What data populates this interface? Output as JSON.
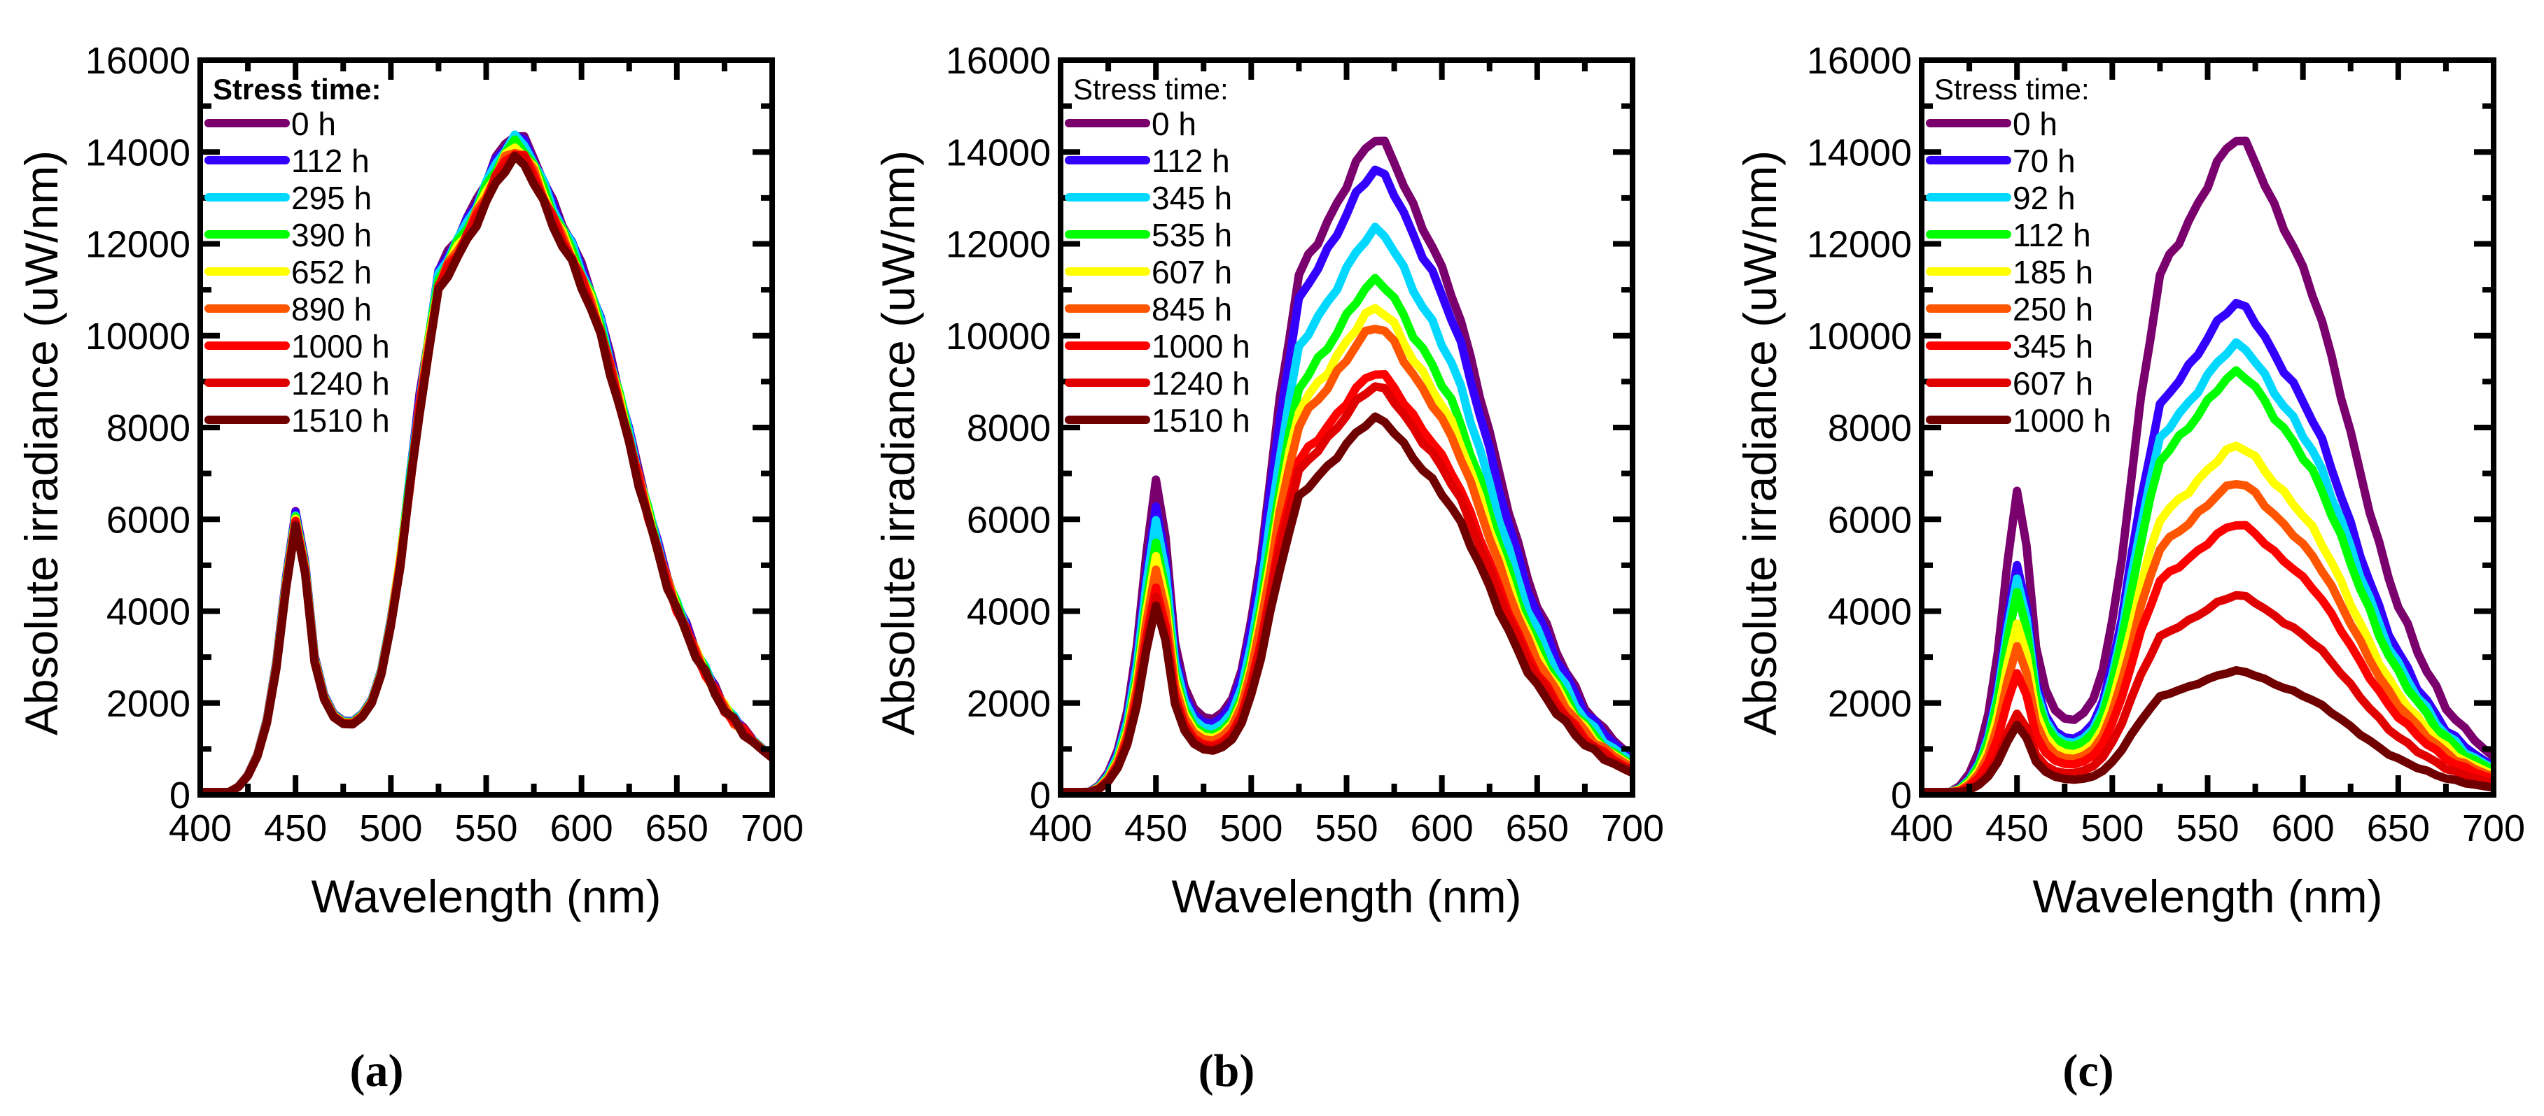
{
  "chart_data": [
    {
      "type": "line",
      "panel_label": "(a)",
      "xlabel": "Wavelength (nm)",
      "ylabel": "Absolute irradiance (uW/nm)",
      "xlim": [
        400,
        700
      ],
      "ylim": [
        0,
        16000
      ],
      "xticks": [
        400,
        450,
        500,
        550,
        600,
        650,
        700
      ],
      "yticks": [
        0,
        2000,
        4000,
        6000,
        8000,
        10000,
        12000,
        14000,
        16000
      ],
      "legend_title": "Stress time:",
      "legend_title_bold": true,
      "legend_position": "top-left",
      "series": [
        {
          "name": "0 h",
          "color": "#7a006e",
          "peak_450": 6300,
          "peak_567": 14400
        },
        {
          "name": "112 h",
          "color": "#3300ff",
          "peak_450": 6280,
          "peak_567": 14350
        },
        {
          "name": "295 h",
          "color": "#00d8ff",
          "peak_450": 6200,
          "peak_567": 14300
        },
        {
          "name": "390 h",
          "color": "#00ff00",
          "peak_450": 6180,
          "peak_567": 14200
        },
        {
          "name": "652 h",
          "color": "#ffff00",
          "peak_450": 6130,
          "peak_567": 14100
        },
        {
          "name": "890 h",
          "color": "#ff5500",
          "peak_450": 6080,
          "peak_567": 14050
        },
        {
          "name": "1000 h",
          "color": "#ff0000",
          "peak_450": 6080,
          "peak_567": 14000
        },
        {
          "name": "1240 h",
          "color": "#e00000",
          "peak_450": 6030,
          "peak_567": 13950
        },
        {
          "name": "1510 h",
          "color": "#700000",
          "peak_450": 5980,
          "peak_567": 13850
        }
      ]
    },
    {
      "type": "line",
      "panel_label": "(b)",
      "xlabel": "Wavelength (nm)",
      "ylabel": "Absolute irradiance (uW/nm)",
      "xlim": [
        400,
        700
      ],
      "ylim": [
        0,
        16000
      ],
      "xticks": [
        400,
        450,
        500,
        550,
        600,
        650,
        700
      ],
      "yticks": [
        0,
        2000,
        4000,
        6000,
        8000,
        10000,
        12000,
        14000,
        16000
      ],
      "legend_title": "Stress time:",
      "legend_title_bold": false,
      "legend_position": "top-left",
      "series": [
        {
          "name": "0 h",
          "color": "#7a006e",
          "peak_450": 7000,
          "peak_567": 14300
        },
        {
          "name": "112 h",
          "color": "#3300ff",
          "peak_450": 6400,
          "peak_567": 13600
        },
        {
          "name": "345 h",
          "color": "#00d8ff",
          "peak_450": 6100,
          "peak_567": 12300
        },
        {
          "name": "535 h",
          "color": "#00ff00",
          "peak_450": 5600,
          "peak_567": 11200
        },
        {
          "name": "607 h",
          "color": "#ffff00",
          "peak_450": 5300,
          "peak_567": 10600
        },
        {
          "name": "845 h",
          "color": "#ff5500",
          "peak_450": 5000,
          "peak_567": 10200
        },
        {
          "name": "1000 h",
          "color": "#ff0000",
          "peak_450": 4600,
          "peak_567": 9200
        },
        {
          "name": "1240 h",
          "color": "#e00000",
          "peak_450": 4400,
          "peak_567": 8900
        },
        {
          "name": "1510 h",
          "color": "#700000",
          "peak_450": 4200,
          "peak_567": 8200
        }
      ]
    },
    {
      "type": "line",
      "panel_label": "(c)",
      "xlabel": "Wavelength (nm)",
      "ylabel": "Absolute irradiance (uW/nm)",
      "xlim": [
        400,
        700
      ],
      "ylim": [
        0,
        16000
      ],
      "xticks": [
        400,
        450,
        500,
        550,
        600,
        650,
        700
      ],
      "yticks": [
        0,
        2000,
        4000,
        6000,
        8000,
        10000,
        12000,
        14000,
        16000
      ],
      "legend_title": "Stress time:",
      "legend_title_bold": false,
      "legend_position": "top-left",
      "series": [
        {
          "name": "0 h",
          "color": "#7a006e",
          "peak_450": 6750,
          "peak_567": 14300
        },
        {
          "name": "70 h",
          "color": "#3300ff",
          "peak_450": 5100,
          "peak_567": 10700
        },
        {
          "name": "92 h",
          "color": "#00d8ff",
          "peak_450": 4800,
          "peak_567": 9800
        },
        {
          "name": "112 h",
          "color": "#00ff00",
          "peak_450": 4500,
          "peak_567": 9200
        },
        {
          "name": "185 h",
          "color": "#ffff00",
          "peak_450": 3800,
          "peak_567": 7600
        },
        {
          "name": "250 h",
          "color": "#ff5500",
          "peak_450": 3300,
          "peak_567": 6800
        },
        {
          "name": "345 h",
          "color": "#ff0000",
          "peak_450": 2700,
          "peak_567": 5900
        },
        {
          "name": "607 h",
          "color": "#e00000",
          "peak_450": 1800,
          "peak_567": 4350
        },
        {
          "name": "1000 h",
          "color": "#700000",
          "peak_450": 1550,
          "peak_567": 2700
        }
      ]
    }
  ],
  "spectral_shape": {
    "x": [
      400,
      405,
      410,
      415,
      420,
      425,
      430,
      435,
      440,
      445,
      450,
      455,
      460,
      465,
      470,
      475,
      480,
      485,
      490,
      495,
      500,
      505,
      510,
      515,
      520,
      525,
      530,
      535,
      540,
      545,
      550,
      555,
      560,
      565,
      570,
      575,
      580,
      585,
      590,
      595,
      600,
      605,
      610,
      615,
      620,
      625,
      630,
      635,
      640,
      645,
      650,
      655,
      660,
      665,
      670,
      675,
      680,
      685,
      690,
      695,
      700
    ],
    "blue_norm": [
      0,
      0.002,
      0.004,
      0.01,
      0.03,
      0.07,
      0.14,
      0.26,
      0.46,
      0.75,
      0.98,
      0.78,
      0.42,
      0.26,
      0.17,
      0.12,
      0.08,
      0.055,
      0.035,
      0.022,
      0.013,
      0.007,
      0.004,
      0.002,
      0,
      0,
      0,
      0,
      0,
      0,
      0,
      0,
      0,
      0,
      0,
      0,
      0,
      0,
      0,
      0,
      0,
      0,
      0,
      0,
      0,
      0,
      0,
      0,
      0,
      0,
      0,
      0,
      0,
      0,
      0,
      0,
      0,
      0,
      0,
      0,
      0
    ],
    "phosphor_norm": [
      0,
      0,
      0,
      0,
      0,
      0.001,
      0.003,
      0.006,
      0.01,
      0.015,
      0.02,
      0.027,
      0.035,
      0.043,
      0.052,
      0.062,
      0.078,
      0.1,
      0.13,
      0.18,
      0.26,
      0.36,
      0.48,
      0.6,
      0.7,
      0.79,
      0.82,
      0.845,
      0.87,
      0.9,
      0.93,
      0.96,
      0.985,
      1.0,
      0.99,
      0.965,
      0.93,
      0.895,
      0.865,
      0.835,
      0.8,
      0.765,
      0.72,
      0.665,
      0.61,
      0.55,
      0.49,
      0.435,
      0.38,
      0.33,
      0.29,
      0.255,
      0.22,
      0.19,
      0.16,
      0.135,
      0.115,
      0.097,
      0.083,
      0.07,
      0.058
    ]
  }
}
